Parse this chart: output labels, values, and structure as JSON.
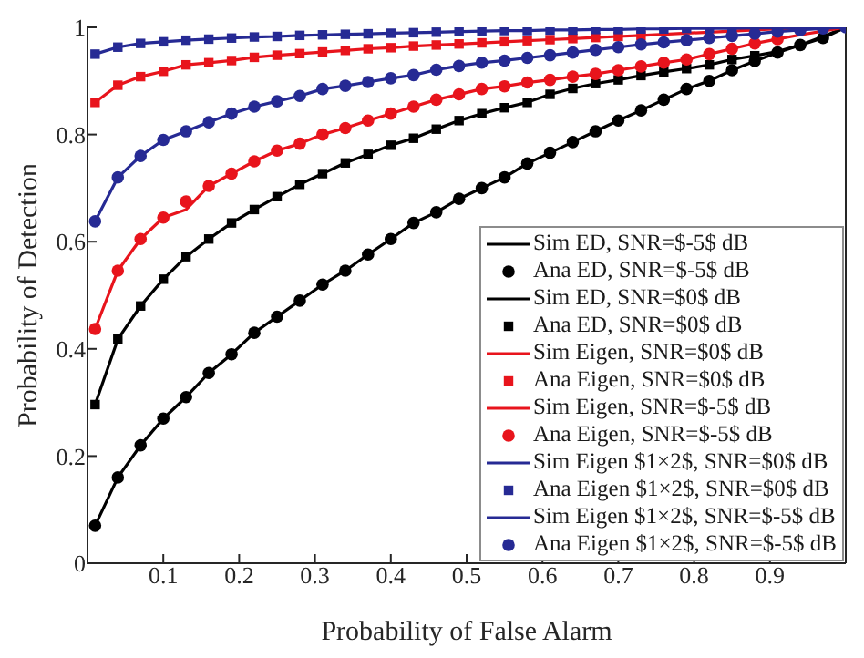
{
  "chart_data": {
    "type": "line",
    "xlabel": "Probability of False Alarm",
    "ylabel": "Probability of Detection",
    "x": [
      0.01,
      0.04,
      0.07,
      0.1,
      0.13,
      0.16,
      0.19,
      0.22,
      0.25,
      0.28,
      0.31,
      0.34,
      0.37,
      0.4,
      0.43,
      0.46,
      0.49,
      0.52,
      0.55,
      0.58,
      0.61,
      0.64,
      0.67,
      0.7,
      0.73,
      0.76,
      0.79,
      0.82,
      0.85,
      0.88,
      0.91,
      0.94,
      0.97,
      1.0
    ],
    "xlim": [
      0,
      1
    ],
    "xticks": [
      0.1,
      0.2,
      0.3,
      0.4,
      0.5,
      0.6,
      0.7,
      0.8,
      0.9
    ],
    "ylim": [
      0,
      1
    ],
    "yticks": [
      0,
      0.2,
      0.4,
      0.6,
      0.8,
      1
    ],
    "legend": "bottom right",
    "series": [
      {
        "name": "Sim ED, SNR=$-5$ dB",
        "marker": "none",
        "color": "#000000",
        "values": [
          0.07,
          0.16,
          0.22,
          0.27,
          0.31,
          0.355,
          0.39,
          0.43,
          0.46,
          0.49,
          0.52,
          0.546,
          0.576,
          0.605,
          0.635,
          0.655,
          0.68,
          0.7,
          0.72,
          0.746,
          0.766,
          0.786,
          0.806,
          0.826,
          0.845,
          0.865,
          0.885,
          0.9,
          0.92,
          0.937,
          0.953,
          0.967,
          0.98,
          1.0
        ]
      },
      {
        "name": "Ana ED, SNR=$-5$ dB",
        "type": "scatter",
        "marker": "circle",
        "color": "#000000",
        "values": [
          0.07,
          0.16,
          0.22,
          0.27,
          0.31,
          0.355,
          0.39,
          0.43,
          0.46,
          0.49,
          0.52,
          0.546,
          0.576,
          0.605,
          0.635,
          0.655,
          0.68,
          0.7,
          0.72,
          0.746,
          0.766,
          0.786,
          0.806,
          0.826,
          0.845,
          0.865,
          0.885,
          0.9,
          0.92,
          0.937,
          0.953,
          0.967,
          0.98,
          null
        ]
      },
      {
        "name": "Sim ED, SNR=$0$ dB",
        "marker": "none",
        "color": "#000000",
        "values": [
          0.296,
          0.418,
          0.48,
          0.53,
          0.572,
          0.605,
          0.635,
          0.66,
          0.684,
          0.707,
          0.727,
          0.747,
          0.763,
          0.78,
          0.793,
          0.81,
          0.826,
          0.839,
          0.85,
          0.86,
          0.875,
          0.886,
          0.895,
          0.902,
          0.91,
          0.917,
          0.923,
          0.93,
          0.94,
          0.947,
          0.955,
          0.967,
          0.983,
          1.0
        ]
      },
      {
        "name": "Ana ED, SNR=$0$ dB",
        "type": "scatter",
        "marker": "square",
        "color": "#000000",
        "values": [
          0.296,
          0.418,
          0.48,
          0.53,
          0.572,
          0.605,
          0.635,
          0.66,
          0.684,
          0.707,
          0.727,
          0.747,
          0.763,
          0.78,
          0.793,
          0.81,
          0.826,
          0.839,
          0.85,
          0.86,
          0.875,
          0.886,
          0.895,
          0.902,
          0.91,
          0.917,
          0.923,
          0.93,
          0.94,
          0.947,
          null,
          null,
          null,
          null
        ]
      },
      {
        "name": "Sim Eigen, SNR=$0$ dB",
        "marker": "none",
        "color": "#e8141c",
        "values": [
          0.86,
          0.892,
          0.908,
          0.918,
          0.93,
          0.934,
          0.938,
          0.944,
          0.948,
          0.951,
          0.954,
          0.957,
          0.96,
          0.962,
          0.965,
          0.967,
          0.969,
          0.971,
          0.973,
          0.975,
          0.977,
          0.979,
          0.981,
          0.983,
          0.985,
          0.987,
          0.989,
          0.991,
          0.993,
          0.995,
          0.997,
          0.998,
          0.999,
          1.0
        ]
      },
      {
        "name": "Ana Eigen, SNR=$0$ dB",
        "type": "scatter",
        "marker": "square",
        "color": "#e8141c",
        "values": [
          0.86,
          0.892,
          0.908,
          0.918,
          0.93,
          0.934,
          0.938,
          0.944,
          0.948,
          0.951,
          0.954,
          0.957,
          0.96,
          0.962,
          0.965,
          0.967,
          0.969,
          0.971,
          0.973,
          0.975,
          0.977,
          0.979,
          0.981,
          0.983,
          0.985,
          null,
          null,
          null,
          null,
          null,
          null,
          null,
          null,
          null
        ]
      },
      {
        "name": "Sim Eigen, SNR=$-5$ dB",
        "marker": "none",
        "color": "#e8141c",
        "values": [
          0.437,
          0.546,
          0.605,
          0.645,
          0.66,
          0.704,
          0.727,
          0.75,
          0.77,
          0.783,
          0.8,
          0.812,
          0.826,
          0.839,
          0.852,
          0.865,
          0.875,
          0.885,
          0.89,
          0.897,
          0.902,
          0.908,
          0.913,
          0.92,
          0.927,
          0.934,
          0.94,
          0.95,
          0.96,
          0.97,
          0.978,
          0.986,
          0.993,
          1.0
        ]
      },
      {
        "name": "Ana Eigen, SNR=$-5$ dB",
        "type": "scatter",
        "marker": "circle",
        "color": "#e8141c",
        "values": [
          0.437,
          0.546,
          0.605,
          0.645,
          0.675,
          0.704,
          0.727,
          0.75,
          0.77,
          0.783,
          0.8,
          0.812,
          0.826,
          0.839,
          0.852,
          0.865,
          0.875,
          0.885,
          0.89,
          0.897,
          0.902,
          0.908,
          0.913,
          0.92,
          0.927,
          0.934,
          0.94,
          0.95,
          0.96,
          0.97,
          0.978,
          null,
          null,
          null
        ]
      },
      {
        "name": "Sim Eigen $1×2$, SNR=$0$ dB",
        "marker": "none",
        "color": "#262a94",
        "values": [
          0.95,
          0.963,
          0.97,
          0.973,
          0.976,
          0.978,
          0.98,
          0.982,
          0.983,
          0.985,
          0.986,
          0.987,
          0.988,
          0.989,
          0.99,
          0.991,
          0.992,
          0.993,
          0.994,
          0.994,
          0.995,
          0.995,
          0.996,
          0.996,
          0.997,
          0.997,
          0.998,
          0.998,
          0.998,
          0.999,
          0.999,
          0.999,
          1.0,
          1.0
        ]
      },
      {
        "name": "Ana Eigen $1×2$, SNR=$0$ dB",
        "type": "scatter",
        "marker": "square",
        "color": "#262a94",
        "values": [
          0.95,
          0.963,
          0.97,
          0.973,
          0.976,
          0.978,
          0.98,
          0.982,
          0.983,
          0.985,
          0.986,
          0.987,
          0.988,
          0.989,
          0.99,
          0.991,
          0.992,
          0.993,
          0.994,
          0.994,
          0.995,
          0.995,
          0.996,
          0.996,
          0.997,
          0.997,
          0.998,
          0.998,
          0.998,
          null,
          null,
          null,
          null,
          null
        ]
      },
      {
        "name": "Sim Eigen $1×2$, SNR=$-5$ dB",
        "marker": "none",
        "color": "#262a94",
        "values": [
          0.638,
          0.72,
          0.76,
          0.79,
          0.806,
          0.823,
          0.839,
          0.852,
          0.862,
          0.872,
          0.885,
          0.891,
          0.898,
          0.905,
          0.911,
          0.921,
          0.928,
          0.934,
          0.938,
          0.943,
          0.948,
          0.953,
          0.958,
          0.963,
          0.968,
          0.972,
          0.976,
          0.98,
          0.984,
          0.988,
          0.992,
          0.995,
          0.998,
          1.0
        ]
      },
      {
        "name": "Ana Eigen $1×2$, SNR=$-5$ dB",
        "type": "scatter",
        "marker": "circle",
        "color": "#262a94",
        "values": [
          0.638,
          0.72,
          0.76,
          0.79,
          0.806,
          0.823,
          0.839,
          0.852,
          0.862,
          0.872,
          0.885,
          0.891,
          0.898,
          0.905,
          0.911,
          0.921,
          0.928,
          0.934,
          0.938,
          0.943,
          0.948,
          0.953,
          0.958,
          0.963,
          0.968,
          0.972,
          0.976,
          0.98,
          0.984,
          0.988,
          0.992,
          0.995,
          0.998,
          1.0
        ]
      }
    ]
  }
}
